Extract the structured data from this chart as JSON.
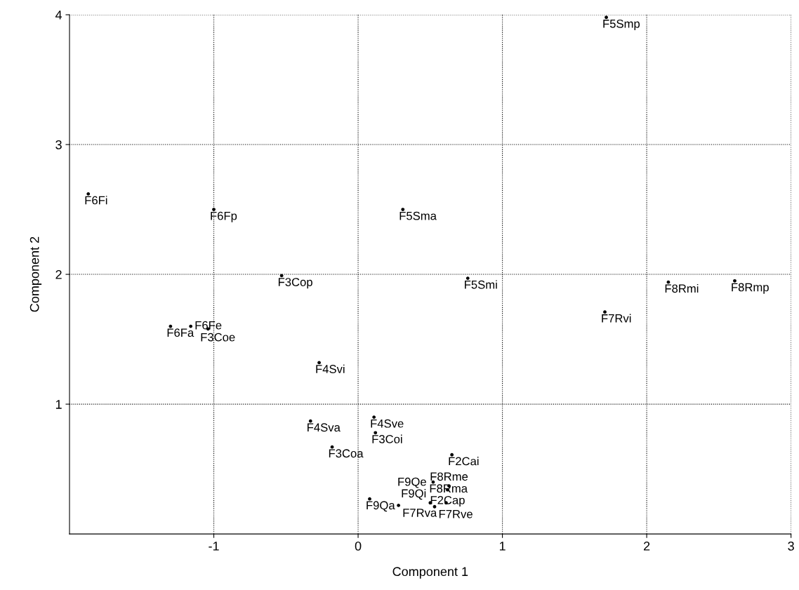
{
  "chart_data": {
    "type": "scatter",
    "xlabel": "Component 1",
    "ylabel": "Component 2",
    "xlim": [
      -2,
      3
    ],
    "ylim": [
      0,
      4
    ],
    "xticks": [
      -1,
      0,
      1,
      2,
      3
    ],
    "yticks": [
      1,
      2,
      3,
      4
    ],
    "grid": true,
    "marker": "circle",
    "series": [
      {
        "color": "#000000",
        "x": [
          1.72,
          -1.87,
          -1.0,
          0.31,
          -0.53,
          0.76,
          1.71,
          2.15,
          2.61,
          -1.3,
          -1.16,
          -1.04,
          -0.27,
          -0.33,
          0.11,
          0.12,
          -0.18,
          0.65,
          0.52,
          0.63,
          0.62,
          0.08,
          0.28,
          0.5,
          0.53,
          0.61
        ],
        "values": [
          3.98,
          2.62,
          2.5,
          2.5,
          1.99,
          1.97,
          1.71,
          1.94,
          1.95,
          1.6,
          1.6,
          1.58,
          1.32,
          0.87,
          0.9,
          0.78,
          0.67,
          0.61,
          0.4,
          0.37,
          0.34,
          0.27,
          0.22,
          0.24,
          0.21,
          0.24
        ]
      }
    ],
    "annotations": [
      {
        "text": "F5Smp",
        "x": 1.72,
        "y": 3.98
      },
      {
        "text": "F6Fi",
        "x": -1.87,
        "y": 2.62
      },
      {
        "text": "F6Fp",
        "x": -1.0,
        "y": 2.5
      },
      {
        "text": "F5Sma",
        "x": 0.31,
        "y": 2.5
      },
      {
        "text": "F3Cop",
        "x": -0.53,
        "y": 1.99
      },
      {
        "text": "F5Smi",
        "x": 0.76,
        "y": 1.97
      },
      {
        "text": "F7Rvi",
        "x": 1.71,
        "y": 1.71
      },
      {
        "text": "F8Rmi",
        "x": 2.15,
        "y": 1.94
      },
      {
        "text": "F8Rmp",
        "x": 2.61,
        "y": 1.95
      },
      {
        "text": "F6Fa",
        "x": -1.3,
        "y": 1.6
      },
      {
        "text": "F6Fe",
        "x": -1.16,
        "y": 1.6
      },
      {
        "text": "F3Coe",
        "x": -1.04,
        "y": 1.58
      },
      {
        "text": "F4Svi",
        "x": -0.27,
        "y": 1.32
      },
      {
        "text": "F4Sva",
        "x": -0.33,
        "y": 0.87
      },
      {
        "text": "F4Sve",
        "x": 0.11,
        "y": 0.9
      },
      {
        "text": "F3Coi",
        "x": 0.12,
        "y": 0.78
      },
      {
        "text": "F3Coa",
        "x": -0.18,
        "y": 0.67
      },
      {
        "text": "F2Cai",
        "x": 0.65,
        "y": 0.61
      },
      {
        "text": "F8Rma",
        "x": 0.52,
        "y": 0.4
      },
      {
        "text": "F8Rme",
        "x": 0.63,
        "y": 0.37
      },
      {
        "text": "F2Cap",
        "x": 0.62,
        "y": 0.34
      },
      {
        "text": "F9Qa",
        "x": 0.08,
        "y": 0.27
      },
      {
        "text": "F7Rva",
        "x": 0.28,
        "y": 0.22
      },
      {
        "text": "F9Qi",
        "x": 0.5,
        "y": 0.24
      },
      {
        "text": "F7Rve",
        "x": 0.53,
        "y": 0.21
      },
      {
        "text": "F9Qe",
        "x": 0.61,
        "y": 0.24
      }
    ]
  }
}
